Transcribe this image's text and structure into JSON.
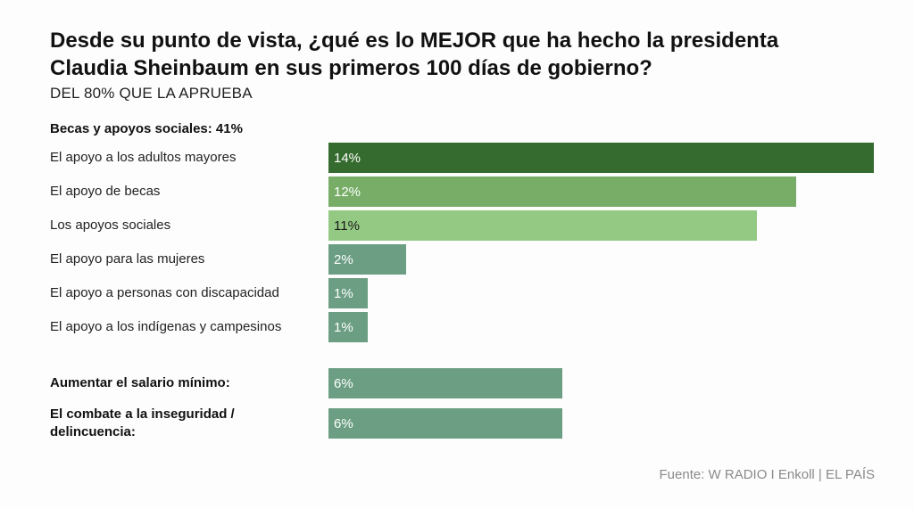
{
  "title": "Desde su punto de vista, ¿qué es lo MEJOR que ha hecho la presidenta Claudia Sheinbaum en sus primeros 100 días de gobierno?",
  "subtitle": "DEL 80% QUE LA APRUEBA",
  "source": "Fuente: W RADIO I Enkoll | EL PAÍS",
  "colors": {
    "dark_green": "#356b2e",
    "mid_green": "#77ad67",
    "light_green": "#93c983",
    "teal_green": "#6b9e82"
  },
  "chart_data": {
    "type": "bar",
    "orientation": "horizontal",
    "title": "Desde su punto de vista, ¿qué es lo MEJOR que ha hecho la presidenta Claudia Sheinbaum en sus primeros 100 días de gobierno?",
    "subtitle": "DEL 80% QUE LA APRUEBA",
    "xlim": [
      0,
      14
    ],
    "grid": false,
    "legend": "none",
    "groups": [
      {
        "header": "Becas y apoyos sociales: 41%",
        "items": [
          {
            "label": "El apoyo a los adultos mayores",
            "value": 14,
            "display": "14%",
            "color": "#356b2e",
            "text_color": "#ffffff"
          },
          {
            "label": "El apoyo de becas",
            "value": 12,
            "display": "12%",
            "color": "#77ad67",
            "text_color": "#ffffff"
          },
          {
            "label": "Los apoyos sociales",
            "value": 11,
            "display": "11%",
            "color": "#93c983",
            "text_color": "#1a1a1a"
          },
          {
            "label": "El apoyo para las mujeres",
            "value": 2,
            "display": "2%",
            "color": "#6b9e82",
            "text_color": "#ffffff"
          },
          {
            "label": "El apoyo a personas con discapacidad",
            "value": 1,
            "display": "1%",
            "color": "#6b9e82",
            "text_color": "#ffffff"
          },
          {
            "label": "El apoyo a los indígenas y campesinos",
            "value": 1,
            "display": "1%",
            "color": "#6b9e82",
            "text_color": "#ffffff"
          }
        ]
      },
      {
        "header": "",
        "items": [
          {
            "label": "Aumentar el salario mínimo:",
            "value": 6,
            "display": "6%",
            "color": "#6b9e82",
            "text_color": "#ffffff",
            "bold": true
          },
          {
            "label": "El combate a la inseguridad / delincuencia:",
            "value": 6,
            "display": "6%",
            "color": "#6b9e82",
            "text_color": "#ffffff",
            "bold": true
          }
        ]
      }
    ]
  }
}
